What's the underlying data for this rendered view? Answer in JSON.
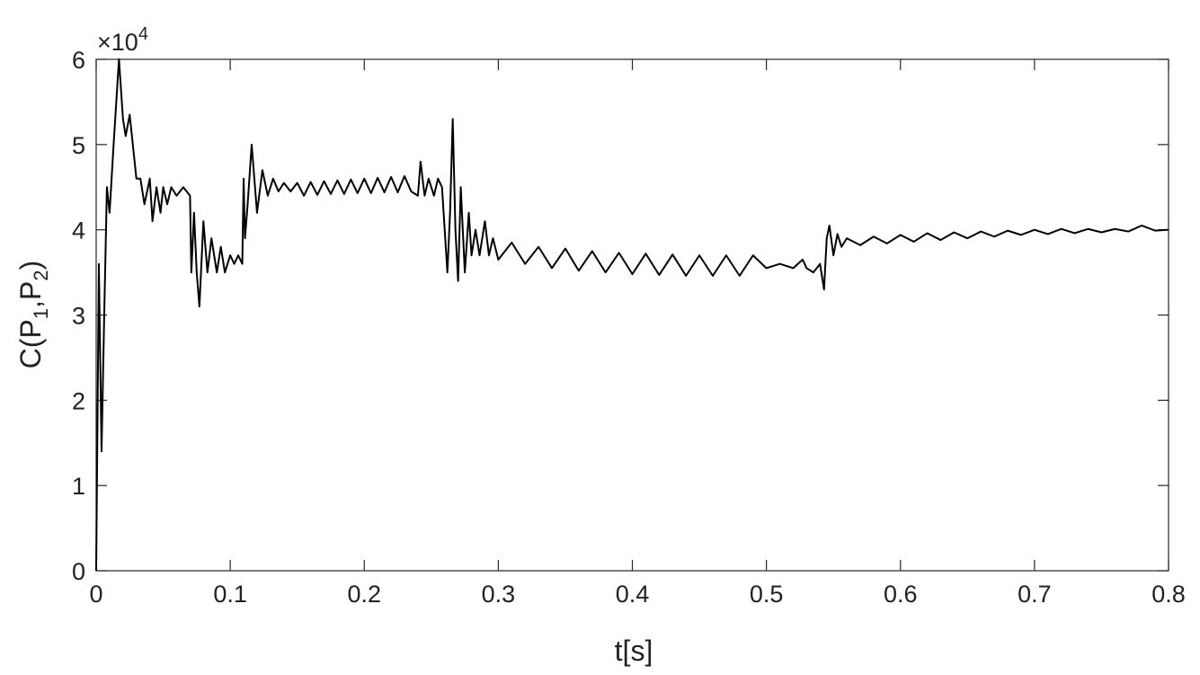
{
  "chart_data": {
    "type": "line",
    "xlabel": "t[s]",
    "ylabel": [
      "C(P",
      "1",
      ",P",
      "2",
      ")"
    ],
    "y_multiplier": {
      "base": "×10",
      "exponent": "4"
    },
    "xlim": [
      0,
      0.8
    ],
    "xticks": [
      0,
      0.1,
      0.2,
      0.3,
      0.4,
      0.5,
      0.6,
      0.7,
      0.8
    ],
    "ylim": [
      0,
      6
    ],
    "yticks": [
      0,
      1,
      2,
      3,
      4,
      5,
      6
    ],
    "grid": false,
    "x": [
      0,
      0.002,
      0.004,
      0.006,
      0.008,
      0.01,
      0.013,
      0.017,
      0.02,
      0.022,
      0.025,
      0.028,
      0.03,
      0.033,
      0.036,
      0.04,
      0.042,
      0.045,
      0.048,
      0.05,
      0.053,
      0.056,
      0.06,
      0.065,
      0.07,
      0.071,
      0.073,
      0.075,
      0.077,
      0.08,
      0.083,
      0.086,
      0.09,
      0.093,
      0.096,
      0.1,
      0.103,
      0.106,
      0.109,
      0.11,
      0.111,
      0.113,
      0.116,
      0.12,
      0.124,
      0.128,
      0.132,
      0.136,
      0.14,
      0.145,
      0.15,
      0.155,
      0.16,
      0.165,
      0.17,
      0.175,
      0.18,
      0.185,
      0.19,
      0.195,
      0.2,
      0.205,
      0.21,
      0.215,
      0.22,
      0.225,
      0.23,
      0.235,
      0.24,
      0.242,
      0.245,
      0.248,
      0.252,
      0.255,
      0.258,
      0.262,
      0.264,
      0.266,
      0.268,
      0.27,
      0.272,
      0.275,
      0.278,
      0.28,
      0.283,
      0.286,
      0.29,
      0.293,
      0.296,
      0.3,
      0.31,
      0.32,
      0.33,
      0.34,
      0.35,
      0.36,
      0.37,
      0.38,
      0.39,
      0.4,
      0.41,
      0.42,
      0.43,
      0.44,
      0.45,
      0.46,
      0.47,
      0.48,
      0.49,
      0.5,
      0.51,
      0.52,
      0.527,
      0.53,
      0.535,
      0.54,
      0.543,
      0.545,
      0.547,
      0.55,
      0.553,
      0.556,
      0.56,
      0.57,
      0.58,
      0.59,
      0.6,
      0.61,
      0.62,
      0.63,
      0.64,
      0.65,
      0.66,
      0.67,
      0.68,
      0.69,
      0.7,
      0.71,
      0.72,
      0.73,
      0.74,
      0.75,
      0.76,
      0.77,
      0.78,
      0.79,
      0.8
    ],
    "series": [
      {
        "color": "#000000",
        "values": [
          0,
          3.6,
          1.4,
          3.0,
          4.5,
          4.2,
          5.0,
          6.0,
          5.3,
          5.1,
          5.35,
          4.9,
          4.6,
          4.6,
          4.3,
          4.6,
          4.1,
          4.5,
          4.2,
          4.5,
          4.3,
          4.5,
          4.4,
          4.5,
          4.4,
          3.5,
          4.2,
          3.5,
          3.1,
          4.1,
          3.5,
          3.9,
          3.5,
          3.8,
          3.5,
          3.7,
          3.6,
          3.7,
          3.6,
          4.6,
          3.9,
          4.3,
          5.0,
          4.2,
          4.7,
          4.4,
          4.6,
          4.45,
          4.55,
          4.45,
          4.55,
          4.4,
          4.56,
          4.41,
          4.57,
          4.42,
          4.58,
          4.42,
          4.59,
          4.43,
          4.6,
          4.43,
          4.61,
          4.44,
          4.62,
          4.44,
          4.63,
          4.45,
          4.4,
          4.8,
          4.4,
          4.6,
          4.4,
          4.6,
          4.5,
          3.5,
          4.2,
          5.3,
          4.0,
          3.4,
          4.5,
          3.5,
          4.2,
          3.7,
          4.0,
          3.7,
          4.1,
          3.7,
          3.9,
          3.65,
          3.85,
          3.6,
          3.8,
          3.55,
          3.78,
          3.52,
          3.75,
          3.5,
          3.73,
          3.48,
          3.72,
          3.47,
          3.71,
          3.46,
          3.7,
          3.46,
          3.7,
          3.46,
          3.7,
          3.55,
          3.6,
          3.55,
          3.65,
          3.55,
          3.5,
          3.6,
          3.3,
          3.9,
          4.05,
          3.7,
          3.95,
          3.8,
          3.9,
          3.82,
          3.92,
          3.84,
          3.94,
          3.86,
          3.96,
          3.88,
          3.97,
          3.9,
          3.98,
          3.92,
          3.99,
          3.94,
          4.0,
          3.95,
          4.01,
          3.96,
          4.01,
          3.97,
          4.01,
          3.98,
          4.05,
          3.99,
          4.0
        ]
      }
    ]
  }
}
